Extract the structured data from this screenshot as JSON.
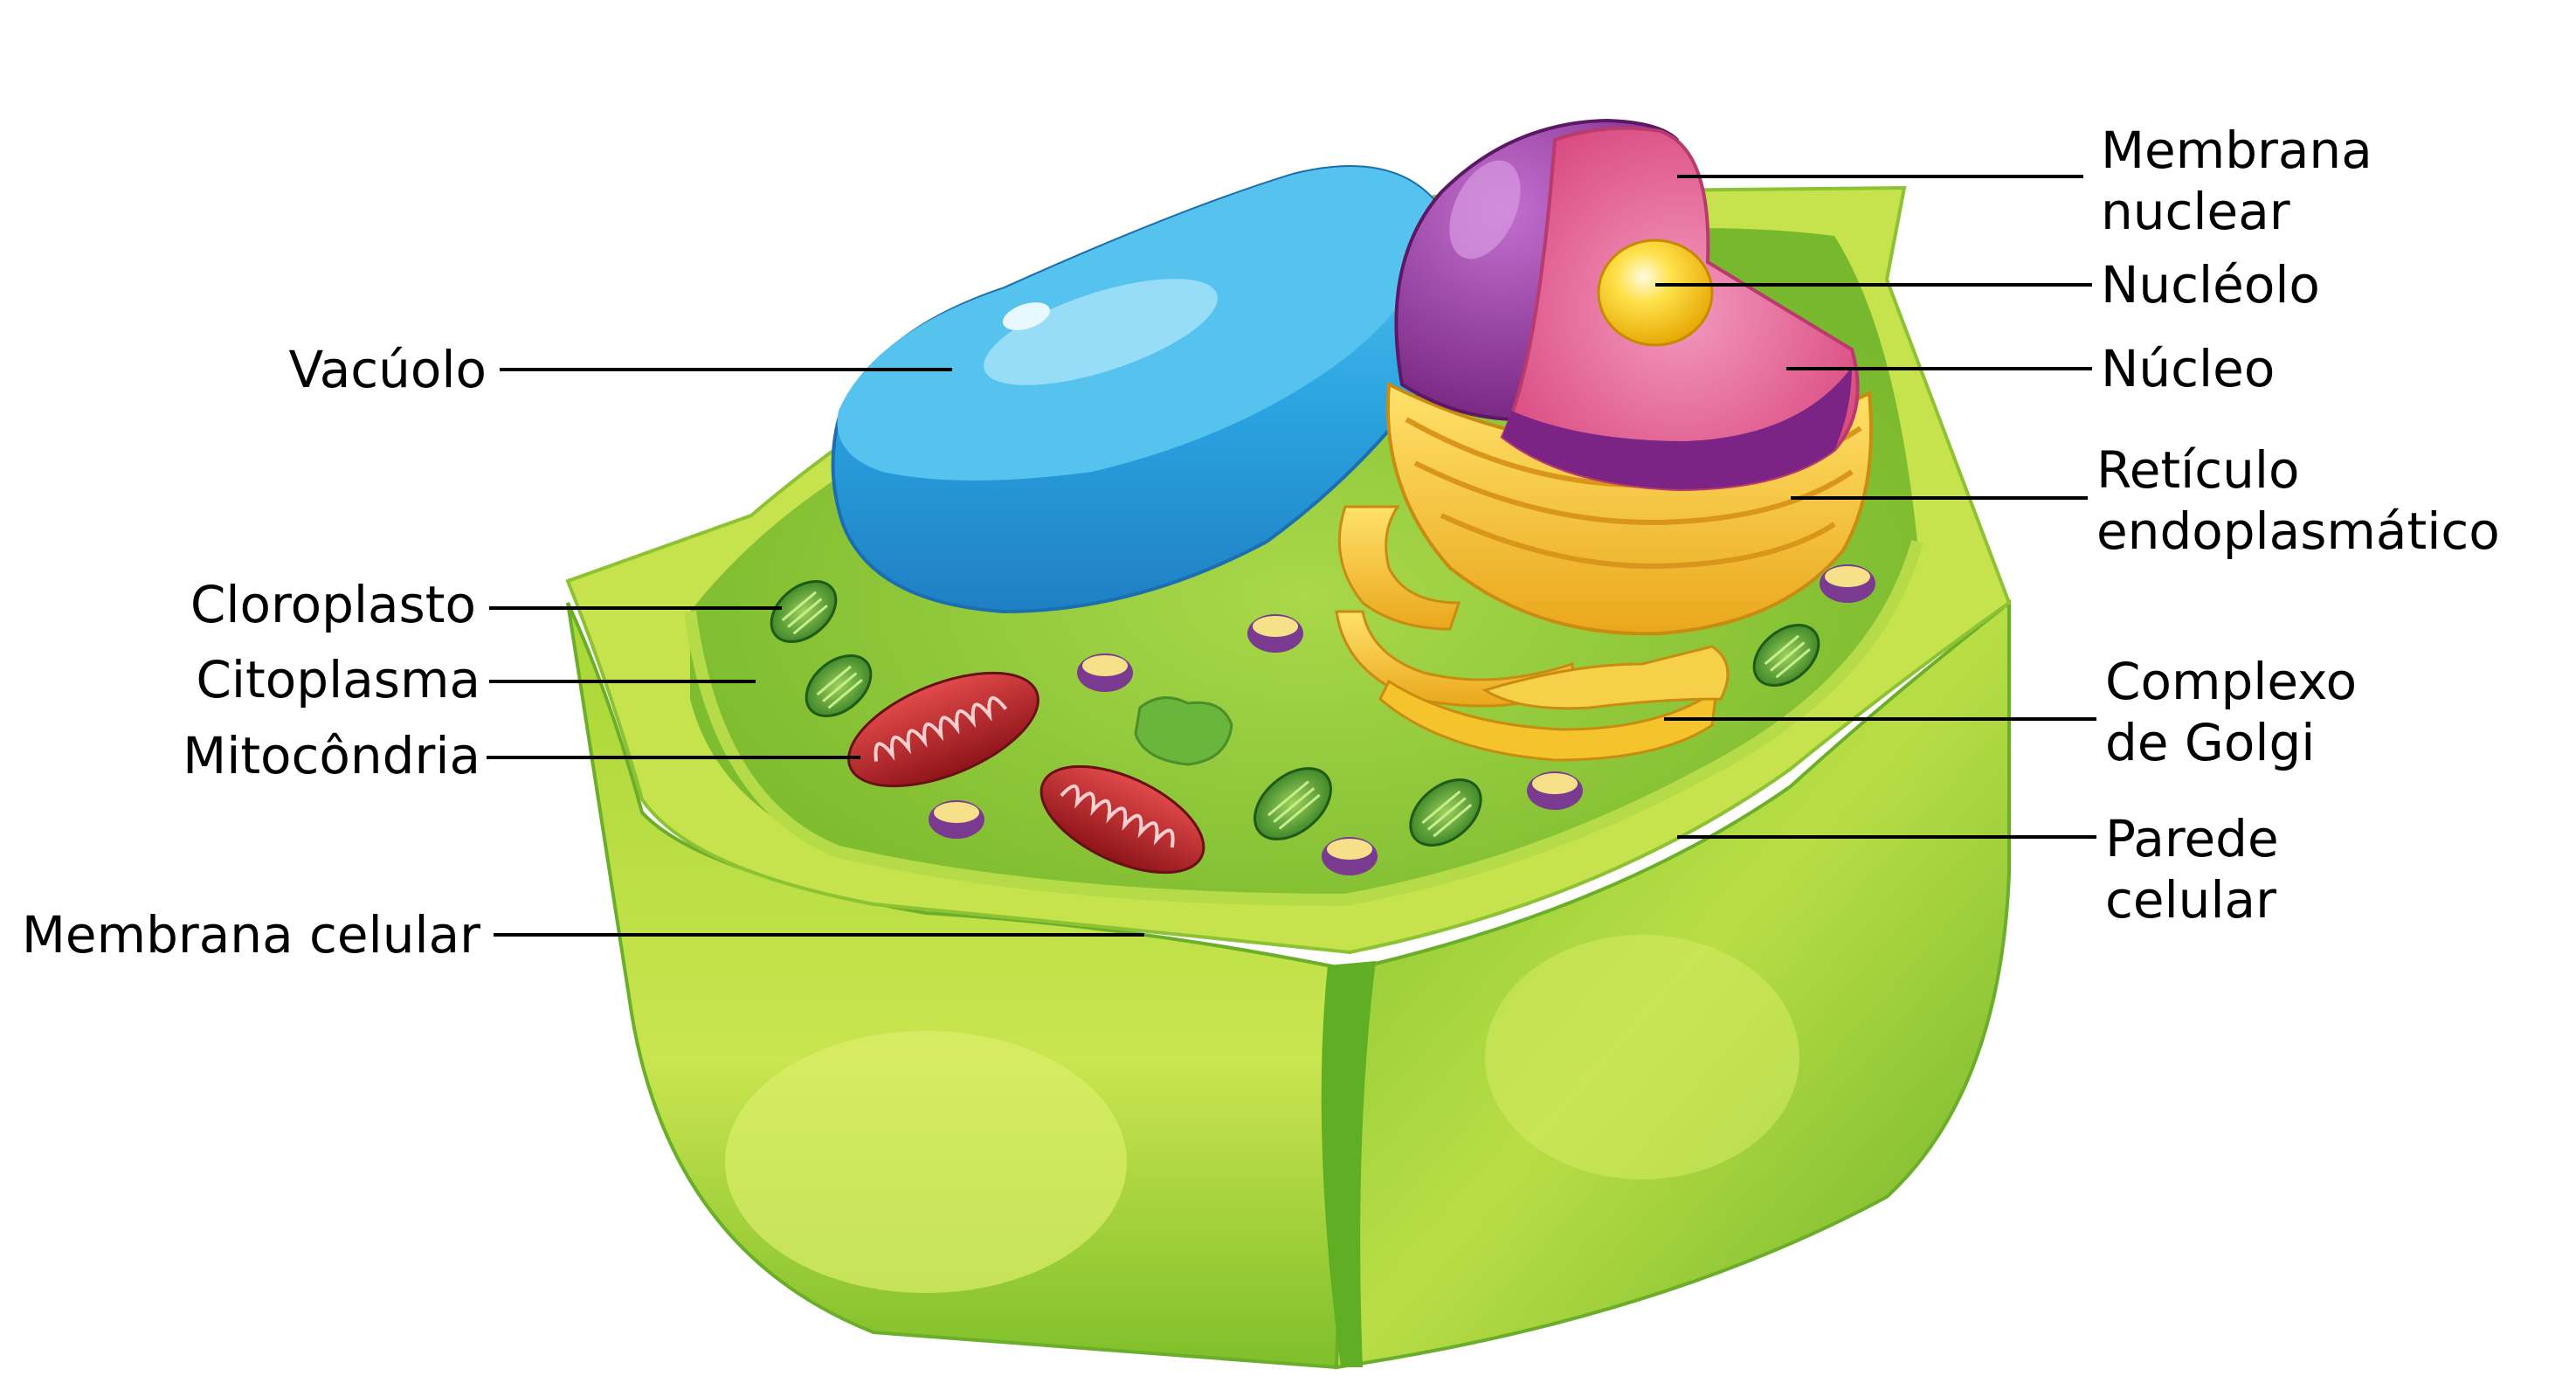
{
  "labels": {
    "vacuolo": "Vacúolo",
    "cloroplasto": "Cloroplasto",
    "citoplasma": "Citoplasma",
    "mitocondria": "Mitocôndria",
    "membrana_celular": "Membrana celular",
    "membrana_nuclear_1": "Membrana",
    "membrana_nuclear_2": "nuclear",
    "nucleolo": "Nucléolo",
    "nucleo": "Núcleo",
    "reticulo_1": "Retículo",
    "reticulo_2": "endoplasmático",
    "golgi_1": "Complexo",
    "golgi_2": "de Golgi",
    "parede_1": "Parede",
    "parede_2": "celular"
  },
  "colors": {
    "wall_light": "#cde65a",
    "wall_mid": "#9ccc2e",
    "wall_dark": "#5aa51e",
    "cytoplasm": "#8cc63f",
    "vacuole": "#2aa3e0",
    "vacuole_light": "#7fd1f5",
    "nucleus_outer": "#8e2a8f",
    "nucleus_inner": "#e9679a",
    "nucleolus": "#f7c600",
    "er": "#f5c42c",
    "golgi": "#f3b31a",
    "mitochondria": "#c8262b",
    "chloroplast": "#3e8e2e"
  }
}
